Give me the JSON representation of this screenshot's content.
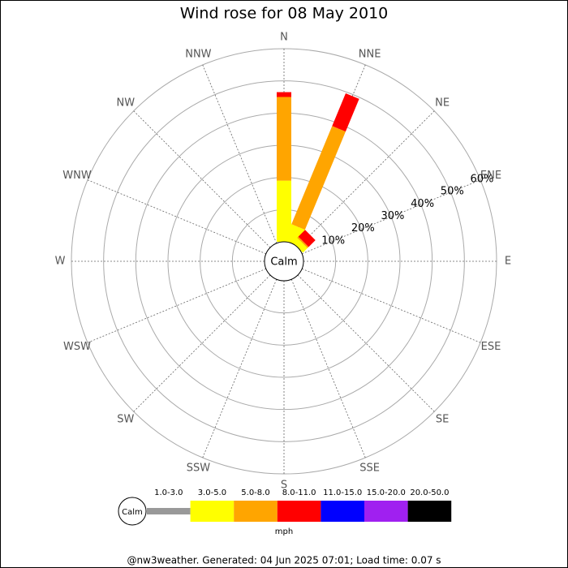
{
  "chart_data": {
    "type": "wind_rose",
    "title": "Wind rose for 08 May 2010",
    "categories": [
      "N",
      "NNE",
      "NE",
      "ENE",
      "E",
      "ESE",
      "SE",
      "SSE",
      "S",
      "SSW",
      "SW",
      "WSW",
      "W",
      "WNW",
      "NW",
      "NNW"
    ],
    "calm_label": "Calm",
    "ylim": [
      0,
      60
    ],
    "yticks": [
      {
        "value": 10,
        "label": "10%"
      },
      {
        "value": 20,
        "label": "20%"
      },
      {
        "value": 30,
        "label": "30%"
      },
      {
        "value": 40,
        "label": "40%"
      },
      {
        "value": 50,
        "label": "50%"
      },
      {
        "value": 60,
        "label": "60%"
      }
    ],
    "grid": true,
    "legend_unit": "mph",
    "series": [
      {
        "name": "1.0-3.0",
        "color": "#999999",
        "values": [
          0,
          0,
          0,
          0,
          0,
          0,
          0,
          0,
          0,
          0,
          0,
          0,
          0,
          0,
          0,
          0
        ]
      },
      {
        "name": "3.0-5.0",
        "color": "#ffff00",
        "values": [
          19,
          5.5,
          2,
          0,
          0,
          0,
          0,
          0,
          0,
          0,
          0,
          0,
          0,
          0,
          0,
          0
        ]
      },
      {
        "name": "5.0-8.0",
        "color": "#ffa500",
        "values": [
          26,
          33,
          0.5,
          0,
          0,
          0,
          0,
          0,
          0,
          0,
          0,
          0,
          0,
          0,
          0,
          0
        ]
      },
      {
        "name": "8.0-11.0",
        "color": "#ff0000",
        "values": [
          1.5,
          11,
          3,
          0,
          0,
          0,
          0,
          0,
          0,
          0,
          0,
          0,
          0,
          0,
          0,
          0
        ]
      },
      {
        "name": "11.0-15.0",
        "color": "#0000ff",
        "values": [
          0,
          0,
          0,
          0,
          0,
          0,
          0,
          0,
          0,
          0,
          0,
          0,
          0,
          0,
          0,
          0
        ]
      },
      {
        "name": "15.0-20.0",
        "color": "#a020f0",
        "values": [
          0,
          0,
          0,
          0,
          0,
          0,
          0,
          0,
          0,
          0,
          0,
          0,
          0,
          0,
          0,
          0
        ]
      },
      {
        "name": "20.0-50.0",
        "color": "#000000",
        "values": [
          0,
          0,
          0,
          0,
          0,
          0,
          0,
          0,
          0,
          0,
          0,
          0,
          0,
          0,
          0,
          0
        ]
      }
    ]
  },
  "footer": "@nw3weather. Generated: 04 Jun 2025 07:01; Load time: 0.07 s"
}
